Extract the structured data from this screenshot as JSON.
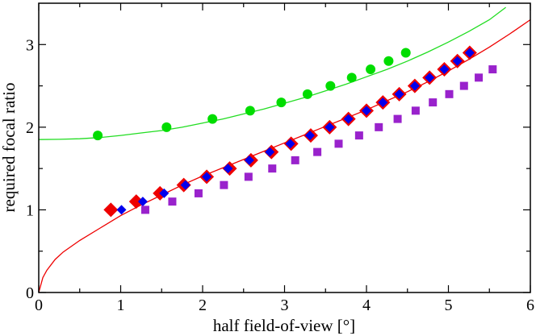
{
  "chart_data": {
    "type": "scatter",
    "title": "",
    "xlabel": "half field-of-view [°]",
    "ylabel": "required focal ratio",
    "xlim": [
      0,
      6
    ],
    "ylim": [
      0,
      3.5
    ],
    "xticks": [
      0,
      1,
      2,
      3,
      4,
      5,
      6
    ],
    "yticks": [
      0,
      1,
      2,
      3
    ],
    "grid": false,
    "legend": "none",
    "colors": {
      "green": "#00dd00",
      "green_line": "#22dd22",
      "red": "#ee0000",
      "blue": "#0000ee",
      "purple": "#9922cc",
      "axis": "#000000"
    },
    "series": [
      {
        "marker": "circle",
        "color": "#00dd00",
        "x": [
          0.72,
          1.56,
          2.12,
          2.58,
          2.96,
          3.28,
          3.56,
          3.82,
          4.05,
          4.27,
          4.48
        ],
        "y": [
          1.9,
          2.0,
          2.1,
          2.2,
          2.3,
          2.4,
          2.5,
          2.6,
          2.7,
          2.8,
          2.9
        ]
      },
      {
        "marker": "big-diamond",
        "color": "#ee0000",
        "x": [
          0.88,
          1.19,
          1.48,
          1.77,
          2.05,
          2.33,
          2.59,
          2.84,
          3.08,
          3.32,
          3.55,
          3.78,
          4.0,
          4.2,
          4.4,
          4.59,
          4.77,
          4.95,
          5.11,
          5.26
        ],
        "y": [
          1.0,
          1.1,
          1.2,
          1.3,
          1.4,
          1.5,
          1.6,
          1.7,
          1.8,
          1.9,
          2.0,
          2.1,
          2.2,
          2.3,
          2.4,
          2.5,
          2.6,
          2.7,
          2.8,
          2.9
        ]
      },
      {
        "marker": "small-diamond",
        "color": "#0000ee",
        "x": [
          1.01,
          1.27,
          1.53,
          1.79,
          2.05,
          2.31,
          2.57,
          2.82,
          3.07,
          3.31,
          3.55,
          3.78,
          4.0,
          4.2,
          4.4,
          4.59,
          4.77,
          4.95,
          5.11,
          5.26
        ],
        "y": [
          1.0,
          1.1,
          1.2,
          1.3,
          1.4,
          1.5,
          1.6,
          1.7,
          1.8,
          1.9,
          2.0,
          2.1,
          2.2,
          2.3,
          2.4,
          2.5,
          2.6,
          2.7,
          2.8,
          2.9
        ]
      },
      {
        "marker": "square",
        "color": "#9922cc",
        "x": [
          1.3,
          1.63,
          1.95,
          2.26,
          2.56,
          2.85,
          3.13,
          3.4,
          3.66,
          3.91,
          4.15,
          4.38,
          4.6,
          4.81,
          5.01,
          5.19,
          5.37,
          5.54
        ],
        "y": [
          1.0,
          1.1,
          1.2,
          1.3,
          1.4,
          1.5,
          1.6,
          1.7,
          1.8,
          1.9,
          2.0,
          2.1,
          2.2,
          2.3,
          2.4,
          2.5,
          2.6,
          2.7
        ]
      }
    ],
    "curves": [
      {
        "color": "#22dd22",
        "x": [
          0.0,
          0.25,
          0.5,
          0.75,
          1.0,
          1.25,
          1.5,
          1.75,
          2.0,
          2.25,
          2.5,
          2.75,
          3.0,
          3.25,
          3.5,
          3.75,
          4.0,
          4.25,
          4.5,
          4.75,
          5.0,
          5.25,
          5.5,
          5.7
        ],
        "y": [
          1.85,
          1.853,
          1.86,
          1.875,
          1.9,
          1.93,
          1.96,
          2.0,
          2.05,
          2.1,
          2.16,
          2.22,
          2.29,
          2.36,
          2.44,
          2.52,
          2.61,
          2.7,
          2.8,
          2.91,
          3.03,
          3.16,
          3.3,
          3.45
        ]
      },
      {
        "color": "#ee0000",
        "x": [
          0.0,
          0.05,
          0.1,
          0.2,
          0.3,
          0.5,
          0.75,
          1.0,
          1.25,
          1.5,
          1.75,
          2.0,
          2.25,
          2.5,
          2.75,
          3.0,
          3.25,
          3.5,
          3.75,
          4.0,
          4.25,
          4.5,
          4.75,
          5.0,
          5.25,
          5.5,
          5.75,
          6.0
        ],
        "y": [
          0.0,
          0.18,
          0.27,
          0.4,
          0.49,
          0.63,
          0.78,
          0.93,
          1.06,
          1.18,
          1.3,
          1.41,
          1.51,
          1.61,
          1.71,
          1.81,
          1.91,
          2.01,
          2.11,
          2.21,
          2.32,
          2.43,
          2.55,
          2.68,
          2.82,
          2.97,
          3.13,
          3.3
        ]
      }
    ]
  }
}
